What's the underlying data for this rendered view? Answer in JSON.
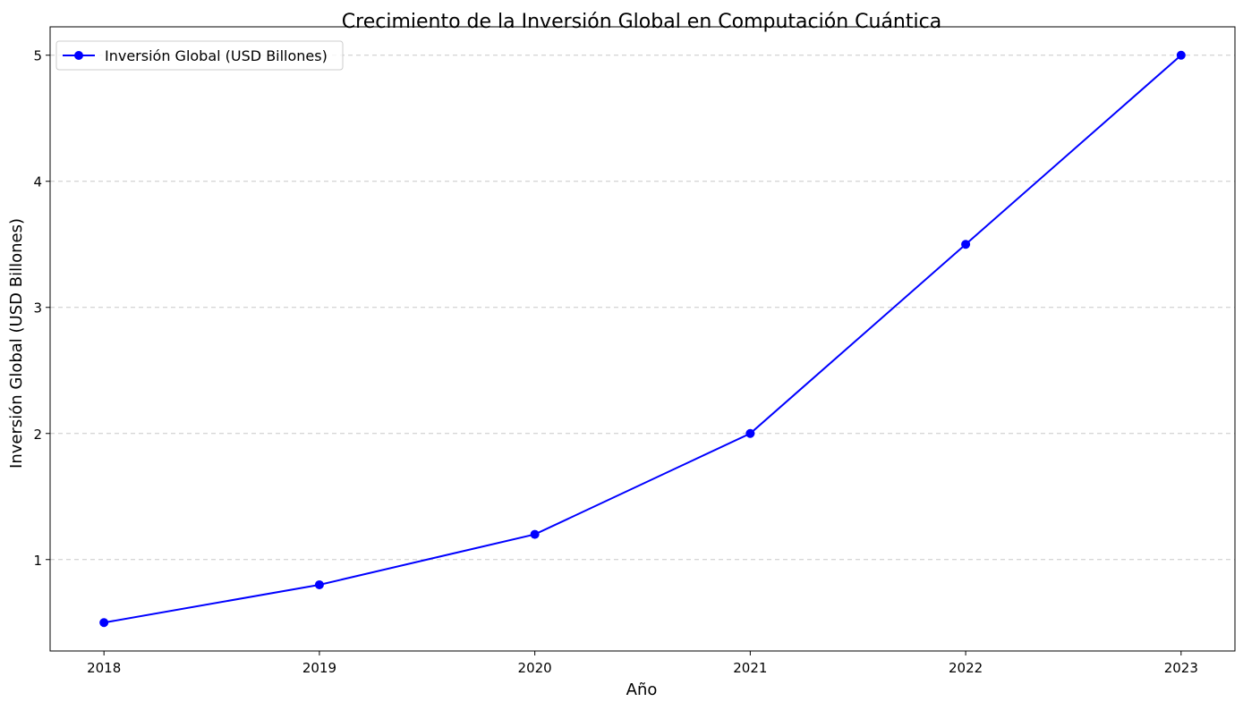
{
  "chart_data": {
    "type": "line",
    "title": "Crecimiento de la Inversión Global en Computación Cuántica",
    "xlabel": "Año",
    "ylabel": "Inversión Global (USD Billones)",
    "x": [
      2018,
      2019,
      2020,
      2021,
      2022,
      2023
    ],
    "series": [
      {
        "name": "Inversión Global (USD Billones)",
        "values": [
          0.5,
          0.8,
          1.2,
          2.0,
          3.5,
          5.0
        ],
        "color": "#0000ff",
        "marker": "circle"
      }
    ],
    "xlim": [
      2017.75,
      2023.25
    ],
    "ylim": [
      0.275,
      5.225
    ],
    "xticks": [
      "2018",
      "2019",
      "2020",
      "2021",
      "2022",
      "2023"
    ],
    "yticks": [
      "1",
      "2",
      "3",
      "4",
      "5"
    ],
    "grid": "y-dashed",
    "legend_position": "upper-left"
  }
}
